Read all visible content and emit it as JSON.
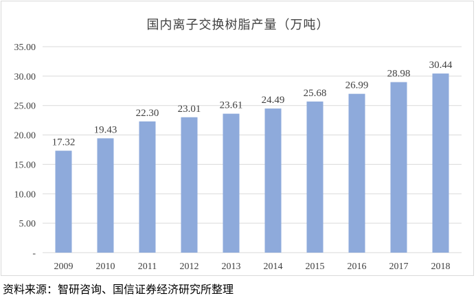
{
  "chart_data": {
    "type": "bar",
    "title": "国内离子交换树脂产量（万吨）",
    "categories": [
      "2009",
      "2010",
      "2011",
      "2012",
      "2013",
      "2014",
      "2015",
      "2016",
      "2017",
      "2018"
    ],
    "values": [
      17.32,
      19.43,
      22.3,
      23.01,
      23.61,
      24.49,
      25.68,
      26.99,
      28.98,
      30.44
    ],
    "value_labels": [
      "17.32",
      "19.43",
      "22.30",
      "23.01",
      "23.61",
      "24.49",
      "25.68",
      "26.99",
      "28.98",
      "30.44"
    ],
    "yticks": [
      "-",
      "5.00",
      "10.00",
      "15.00",
      "20.00",
      "25.00",
      "30.00",
      "35.00"
    ],
    "ylim": [
      0,
      35
    ],
    "xlabel": "",
    "ylabel": "",
    "grid": true,
    "bar_color": "#8eaadb",
    "grid_color": "#d9d9d9"
  },
  "source": "资料来源：智研咨询、国信证券经济研究所整理"
}
